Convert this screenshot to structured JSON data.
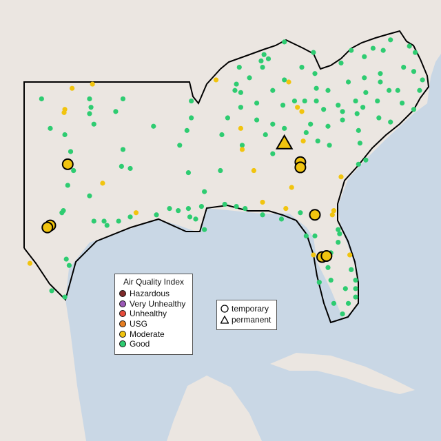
{
  "map": {
    "land_color": "#ebe6e1",
    "water_color": "#c9d7e5",
    "outline_color": "#000000",
    "projection_note_free": true
  },
  "legend_aqi": {
    "title": "Air Quality Index",
    "items": [
      {
        "label": "Hazardous",
        "color": "#7e2a2a"
      },
      {
        "label": "Very Unhealthy",
        "color": "#9b59b6"
      },
      {
        "label": "Unhealthy",
        "color": "#e74c3c"
      },
      {
        "label": "USG",
        "color": "#e67e22"
      },
      {
        "label": "Moderate",
        "color": "#f1c40f"
      },
      {
        "label": "Good",
        "color": "#2ecc71"
      }
    ]
  },
  "legend_type": {
    "items": [
      {
        "label": "temporary",
        "icon": "circle-icon"
      },
      {
        "label": "permanent",
        "icon": "triangle-icon"
      }
    ]
  },
  "monitors_large": [
    {
      "lon": -100.0,
      "lat": 32.6,
      "aqi": "Moderate",
      "type": "temporary"
    },
    {
      "lon": -101.2,
      "lat": 29.7,
      "aqi": "Moderate",
      "type": "temporary"
    },
    {
      "lon": -101.4,
      "lat": 29.6,
      "aqi": "Moderate",
      "type": "temporary"
    },
    {
      "lon": -85.1,
      "lat": 33.6,
      "aqi": "Moderate",
      "type": "permanent"
    },
    {
      "lon": -84.0,
      "lat": 32.7,
      "aqi": "Moderate",
      "type": "temporary"
    },
    {
      "lon": -84.0,
      "lat": 32.45,
      "aqi": "Moderate",
      "type": "temporary"
    },
    {
      "lon": -83.0,
      "lat": 30.2,
      "aqi": "Moderate",
      "type": "temporary"
    },
    {
      "lon": -82.5,
      "lat": 28.2,
      "aqi": "Moderate",
      "type": "temporary"
    },
    {
      "lon": -82.2,
      "lat": 28.25,
      "aqi": "Moderate",
      "type": "temporary"
    }
  ],
  "monitors_moderate": [
    [
      -99.7,
      36.2
    ],
    [
      -98.3,
      36.4
    ],
    [
      -100.2,
      35.2
    ],
    [
      -100.25,
      35.05
    ],
    [
      -97.6,
      31.7
    ],
    [
      -95.3,
      30.3
    ],
    [
      -102.6,
      27.9
    ],
    [
      -89.8,
      36.6
    ],
    [
      -88.1,
      34.3
    ],
    [
      -88.0,
      33.3
    ],
    [
      -87.2,
      32.3
    ],
    [
      -83.8,
      33.7
    ],
    [
      -84.6,
      31.5
    ],
    [
      -85.0,
      30.5
    ],
    [
      -86.6,
      30.8
    ],
    [
      -83.9,
      35.1
    ],
    [
      -81.2,
      32.0
    ],
    [
      -81.7,
      30.4
    ],
    [
      -81.8,
      30.2
    ],
    [
      -83.1,
      28.3
    ],
    [
      -80.6,
      28.3
    ],
    [
      -84.8,
      36.5
    ],
    [
      -84.2,
      35.3
    ]
  ],
  "monitors_good": [
    [
      -101.8,
      35.7
    ],
    [
      -98.5,
      35.7
    ],
    [
      -96.2,
      35.7
    ],
    [
      -98.4,
      35.3
    ],
    [
      -98.5,
      35.0
    ],
    [
      -96.7,
      35.1
    ],
    [
      -101.2,
      34.3
    ],
    [
      -100.2,
      34.0
    ],
    [
      -98.2,
      34.5
    ],
    [
      -94.1,
      34.4
    ],
    [
      -99.8,
      33.2
    ],
    [
      -96.2,
      33.3
    ],
    [
      -96.3,
      32.5
    ],
    [
      -99.6,
      32.3
    ],
    [
      -95.7,
      32.4
    ],
    [
      -100.0,
      31.6
    ],
    [
      -98.5,
      31.1
    ],
    [
      -100.3,
      30.4
    ],
    [
      -100.4,
      30.3
    ],
    [
      -98.2,
      29.9
    ],
    [
      -97.5,
      29.9
    ],
    [
      -97.3,
      29.7
    ],
    [
      -96.5,
      29.9
    ],
    [
      -95.7,
      30.1
    ],
    [
      -93.9,
      30.2
    ],
    [
      -93.0,
      30.5
    ],
    [
      -92.4,
      30.4
    ],
    [
      -91.7,
      30.5
    ],
    [
      -91.6,
      30.1
    ],
    [
      -91.2,
      30.0
    ],
    [
      -100.1,
      28.1
    ],
    [
      -99.9,
      27.8
    ],
    [
      -101.1,
      26.6
    ],
    [
      -100.2,
      26.3
    ],
    [
      -91.5,
      35.6
    ],
    [
      -91.5,
      34.8
    ],
    [
      -91.8,
      34.2
    ],
    [
      -92.3,
      33.5
    ],
    [
      -91.7,
      32.2
    ],
    [
      -90.6,
      31.3
    ],
    [
      -89.5,
      32.3
    ],
    [
      -89.0,
      34.8
    ],
    [
      -89.4,
      34.0
    ],
    [
      -88.1,
      35.3
    ],
    [
      -88.1,
      36.0
    ],
    [
      -87.0,
      35.5
    ],
    [
      -87.0,
      34.7
    ],
    [
      -86.4,
      34.0
    ],
    [
      -88.0,
      33.5
    ],
    [
      -85.9,
      34.5
    ],
    [
      -85.9,
      33.1
    ],
    [
      -85.1,
      34.3
    ],
    [
      -85.2,
      35.4
    ],
    [
      -84.4,
      35.6
    ],
    [
      -83.7,
      35.6
    ],
    [
      -82.9,
      35.6
    ],
    [
      -83.3,
      34.5
    ],
    [
      -82.4,
      35.2
    ],
    [
      -81.4,
      35.4
    ],
    [
      -81.1,
      35.1
    ],
    [
      -80.2,
      35.6
    ],
    [
      -80.1,
      35.0
    ],
    [
      -80.0,
      34.2
    ],
    [
      -79.9,
      33.6
    ],
    [
      -81.1,
      34.7
    ],
    [
      -82.1,
      34.4
    ],
    [
      -82.0,
      33.5
    ],
    [
      -82.8,
      33.7
    ],
    [
      -83.6,
      34.1
    ],
    [
      -80.0,
      32.6
    ],
    [
      -79.5,
      32.8
    ],
    [
      -90.8,
      30.6
    ],
    [
      -90.6,
      29.5
    ],
    [
      -89.2,
      30.7
    ],
    [
      -88.4,
      30.6
    ],
    [
      -87.8,
      30.5
    ],
    [
      -86.6,
      30.2
    ],
    [
      -85.3,
      30.0
    ],
    [
      -84.0,
      30.3
    ],
    [
      -85.1,
      38.4
    ],
    [
      -83.1,
      37.9
    ],
    [
      -83.0,
      36.9
    ],
    [
      -83.9,
      37.2
    ],
    [
      -85.1,
      36.6
    ],
    [
      -88.2,
      37.2
    ],
    [
      -87.5,
      36.7
    ],
    [
      -86.7,
      37.5
    ],
    [
      -86.6,
      37.2
    ],
    [
      -86.2,
      37.6
    ],
    [
      -86.5,
      37.8
    ],
    [
      -88.4,
      36.4
    ],
    [
      -88.5,
      36.1
    ],
    [
      -85.9,
      36.1
    ],
    [
      -82.9,
      36.2
    ],
    [
      -80.7,
      36.5
    ],
    [
      -79.6,
      36.7
    ],
    [
      -78.5,
      36.5
    ],
    [
      -77.9,
      36.1
    ],
    [
      -78.7,
      35.6
    ],
    [
      -77.3,
      36.1
    ],
    [
      -77.0,
      35.5
    ],
    [
      -76.2,
      35.2
    ],
    [
      -76.1,
      37.9
    ],
    [
      -76.5,
      38.2
    ],
    [
      -78.3,
      38.0
    ],
    [
      -77.8,
      38.5
    ],
    [
      -79.0,
      38.1
    ],
    [
      -81.2,
      37.4
    ],
    [
      -79.6,
      37.7
    ],
    [
      -76.9,
      37.2
    ],
    [
      -76.2,
      37.0
    ],
    [
      -75.6,
      36.6
    ],
    [
      -75.8,
      36.1
    ],
    [
      -78.5,
      36.9
    ],
    [
      -80.5,
      38.0
    ],
    [
      -82.1,
      36.1
    ],
    [
      -79.5,
      36.0
    ],
    [
      -79.7,
      35.3
    ],
    [
      -78.6,
      34.8
    ],
    [
      -77.8,
      34.6
    ],
    [
      -83.6,
      29.2
    ],
    [
      -83.0,
      29.2
    ],
    [
      -81.3,
      29.3
    ],
    [
      -81.4,
      28.9
    ],
    [
      -81.9,
      28.4
    ],
    [
      -81.4,
      29.5
    ],
    [
      -82.1,
      27.7
    ],
    [
      -81.9,
      27.1
    ],
    [
      -80.5,
      27.6
    ],
    [
      -80.2,
      27.1
    ],
    [
      -80.9,
      26.7
    ],
    [
      -80.2,
      26.7
    ],
    [
      -80.2,
      26.3
    ],
    [
      -80.7,
      26.0
    ],
    [
      -81.7,
      26.0
    ],
    [
      -82.7,
      27.0
    ],
    [
      -81.1,
      25.5
    ]
  ]
}
